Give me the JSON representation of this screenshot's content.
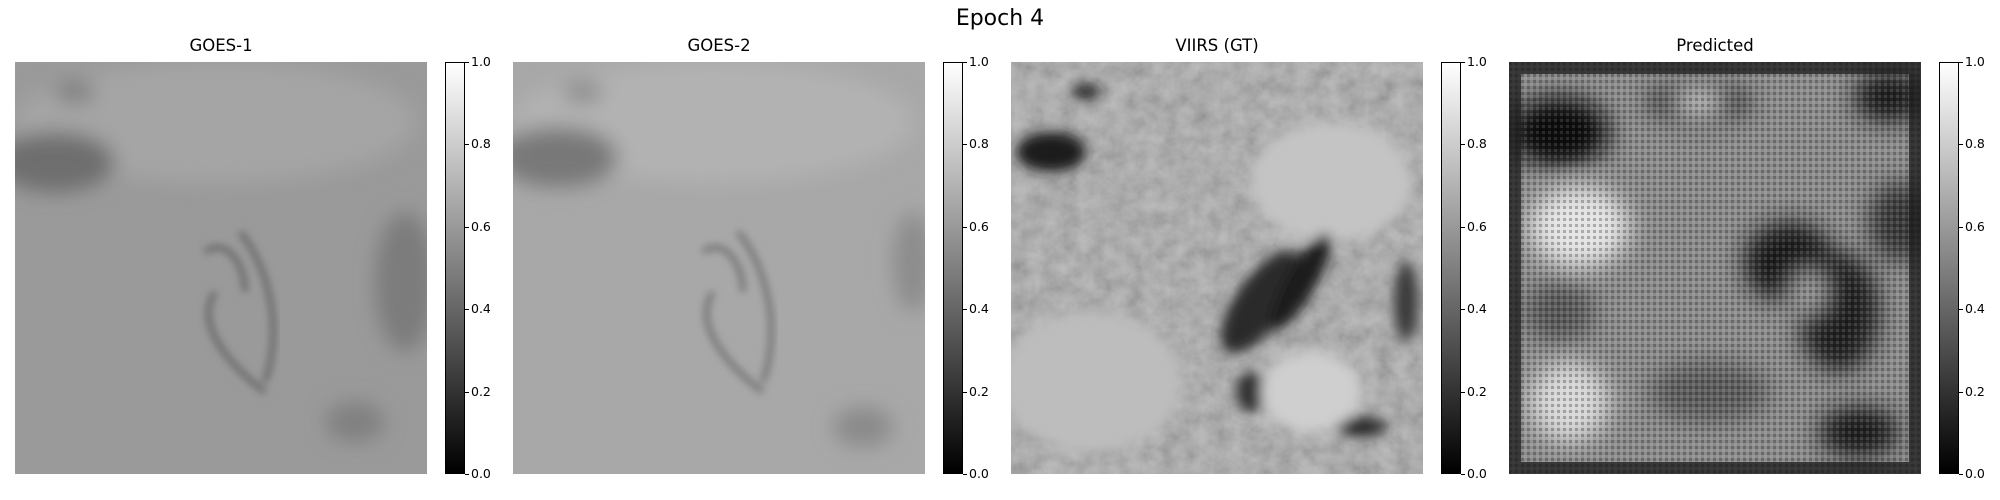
{
  "figure": {
    "title": "Epoch 4"
  },
  "panels": [
    {
      "title": "GOES-1"
    },
    {
      "title": "GOES-2"
    },
    {
      "title": "VIIRS (GT)"
    },
    {
      "title": "Predicted"
    }
  ],
  "colorbar": {
    "colormap": "gray",
    "range": [
      0.0,
      1.0
    ],
    "ticks": [
      "1.0",
      "0.8",
      "0.6",
      "0.4",
      "0.2",
      "0.0"
    ]
  }
}
